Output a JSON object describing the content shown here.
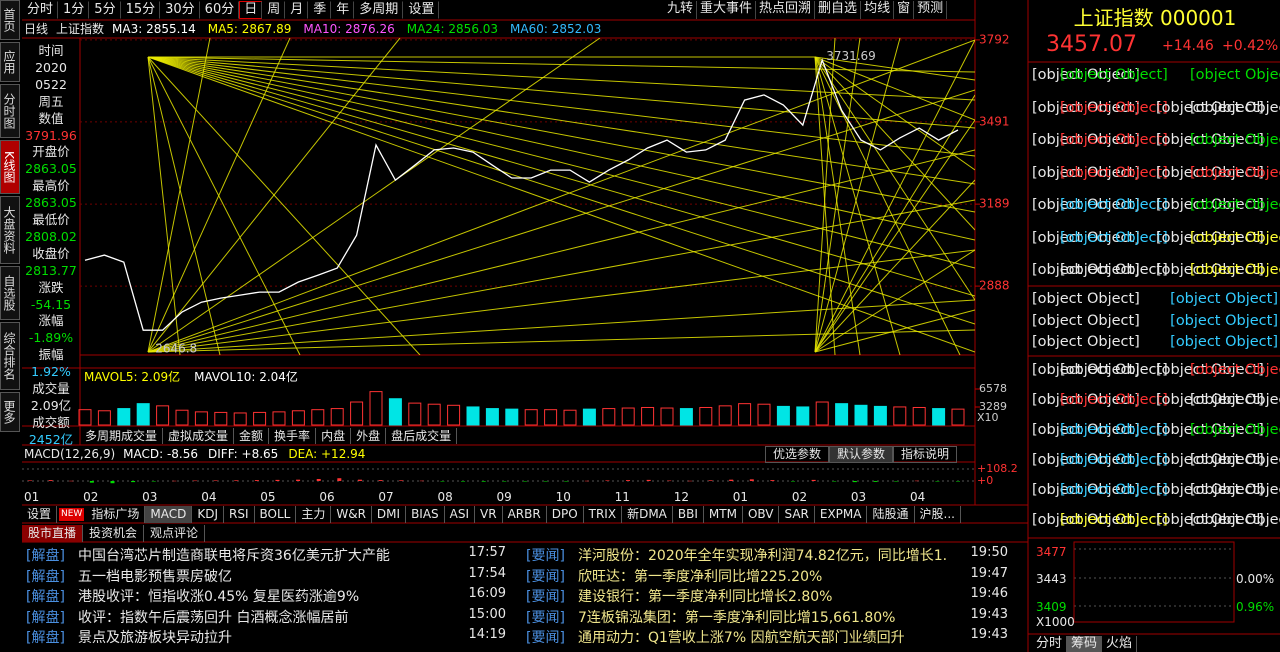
{
  "sidebar_tabs": [
    "首页",
    "应用",
    "分时图",
    "K线图",
    "大盘资料",
    "自选股",
    "综合排名",
    "更多"
  ],
  "sidebar_active": 3,
  "toolbar": {
    "periods": [
      "分时",
      "1分",
      "5分",
      "15分",
      "30分",
      "60分",
      "日",
      "周",
      "月",
      "季",
      "年",
      "多周期",
      "设置"
    ],
    "active": 6,
    "tools": [
      "九转",
      "重大事件",
      "热点回溯",
      "删自选",
      "均线",
      "窗",
      "预测"
    ]
  },
  "legend": {
    "period": "日线",
    "name": "上证指数",
    "ma": [
      {
        "label": "MA3: 2855.14",
        "color": "#ffffff"
      },
      {
        "label": "MA5: 2867.89",
        "color": "#ffff00"
      },
      {
        "label": "MA10: 2876.26",
        "color": "#ff55ff"
      },
      {
        "label": "MA24: 2856.03",
        "color": "#00e000"
      },
      {
        "label": "MA60: 2852.03",
        "color": "#33bbff"
      }
    ]
  },
  "info_panel": [
    {
      "text": "时间",
      "c": "w"
    },
    {
      "text": "2020",
      "c": "w"
    },
    {
      "text": "0522",
      "c": "w"
    },
    {
      "text": "周五",
      "c": "w"
    },
    {
      "text": "数值",
      "c": "w"
    },
    {
      "text": "3791.96",
      "c": "r"
    },
    {
      "text": "开盘价",
      "c": "w"
    },
    {
      "text": "2863.05",
      "c": "g"
    },
    {
      "text": "最高价",
      "c": "w"
    },
    {
      "text": "2863.05",
      "c": "g"
    },
    {
      "text": "最低价",
      "c": "w"
    },
    {
      "text": "2808.02",
      "c": "g"
    },
    {
      "text": "收盘价",
      "c": "w"
    },
    {
      "text": "2813.77",
      "c": "g"
    },
    {
      "text": "涨跌",
      "c": "w"
    },
    {
      "text": "-54.15",
      "c": "g"
    },
    {
      "text": "涨幅",
      "c": "w"
    },
    {
      "text": "-1.89%",
      "c": "g"
    },
    {
      "text": "振幅",
      "c": "w"
    },
    {
      "text": "1.92%",
      "c": "c"
    },
    {
      "text": "成交量",
      "c": "w"
    },
    {
      "text": "2.09亿",
      "c": "w"
    },
    {
      "text": "成交额",
      "c": "w"
    },
    {
      "text": "2452亿",
      "c": "c"
    }
  ],
  "kline": {
    "ylim": [
      2635,
      3799
    ],
    "yticks": [
      3792,
      3491,
      3189,
      2888
    ],
    "color": "#ffffff",
    "high": 3731.69,
    "low": 2646.8,
    "close": [
      2983,
      3002,
      2976,
      2726,
      2726,
      2793,
      2829,
      2844,
      2855,
      2866,
      2866,
      2903,
      2928,
      2954,
      3075,
      3406,
      3277,
      3332,
      3388,
      3395,
      3380,
      3332,
      3285,
      3285,
      3314,
      3314,
      3270,
      3314,
      3351,
      3395,
      3424,
      3380,
      3388,
      3424,
      3571,
      3590,
      3553,
      3479,
      3718,
      3534,
      3424,
      3388,
      3432,
      3468,
      3424,
      3461
    ]
  },
  "volume": {
    "legend": [
      {
        "label": "MAVOL5: 2.09亿",
        "color": "#ffff00"
      },
      {
        "label": "MAVOL10: 2.04亿",
        "color": "#ffffff"
      }
    ],
    "ylim": [
      0,
      10050
    ],
    "yticks": [
      6578,
      3289
    ],
    "unit": "X10",
    "up_color": "#ff3333",
    "down_color": "#00e5e5",
    "values": [
      2800,
      2600,
      3000,
      3900,
      3500,
      2700,
      2400,
      2300,
      2200,
      2300,
      2400,
      2600,
      2800,
      3000,
      4200,
      6100,
      4800,
      4000,
      3800,
      3600,
      3300,
      3000,
      2900,
      2800,
      2800,
      2700,
      2900,
      3000,
      3100,
      3200,
      3100,
      3000,
      3200,
      3500,
      3900,
      3800,
      3400,
      3300,
      4200,
      3900,
      3600,
      3400,
      3300,
      3200,
      3000,
      2900
    ]
  },
  "volume_tabs": [
    "多周期成交量",
    "虚拟成交量",
    "金额",
    "换手率",
    "内盘",
    "外盘",
    "盘后成交量"
  ],
  "macd": {
    "title": "MACD(12,26,9)",
    "values": [
      {
        "label": "MACD: -8.56",
        "color": "#ffffff"
      },
      {
        "label": "DIFF: +8.65",
        "color": "#ffffff"
      },
      {
        "label": "DEA: +12.94",
        "color": "#ffff00"
      }
    ],
    "buttons": [
      "优选参数",
      "默认参数",
      "指标说明"
    ],
    "ylim": [
      -81,
      171
    ],
    "yticks": [
      {
        "value": 108.2,
        "label": "+108.2"
      },
      {
        "value": 0,
        "label": "+0"
      }
    ],
    "hist": [
      5,
      8,
      2,
      -15,
      -20,
      -10,
      -3,
      2,
      4,
      5,
      6,
      8,
      10,
      12,
      18,
      25,
      12,
      8,
      6,
      3,
      -2,
      -5,
      -6,
      -4,
      -2,
      -3,
      -4,
      2,
      5,
      8,
      10,
      4,
      2,
      6,
      12,
      15,
      8,
      -3,
      10,
      -4,
      -10,
      -8,
      -2,
      3,
      -3,
      -1
    ]
  },
  "months": [
    "01",
    "02",
    "03",
    "04",
    "05",
    "06",
    "07",
    "08",
    "09",
    "10",
    "11",
    "12",
    "01",
    "02",
    "03",
    "04"
  ],
  "indicator_tabs": {
    "badge": "NEW",
    "items": [
      "设置",
      "指标广场",
      "MACD",
      "KDJ",
      "RSI",
      "BOLL",
      "主力",
      "W&R",
      "DMI",
      "BIAS",
      "ASI",
      "VR",
      "ARBR",
      "DPO",
      "TRIX",
      "新DMA",
      "BBI",
      "MTM",
      "OBV",
      "SAR",
      "EXPMA",
      "陆股通",
      "沪股..."
    ],
    "active": 2
  },
  "news": {
    "tabs": [
      "股市直播",
      "投资机会",
      "观点评论"
    ],
    "active": 0,
    "left": [
      {
        "tag": "[解盘]",
        "text": "中国台湾芯片制造商联电将斥资36亿美元扩大产能",
        "time": "17:57"
      },
      {
        "tag": "[解盘]",
        "text": "五一档电影预售票房破亿",
        "time": "17:54"
      },
      {
        "tag": "[解盘]",
        "text": "港股收评：恒指收涨0.45% 复星医药涨逾9%",
        "time": "16:09"
      },
      {
        "tag": "[解盘]",
        "text": "收评：指数午后震荡回升 白酒概念涨幅居前",
        "time": "15:00"
      },
      {
        "tag": "[解盘]",
        "text": "景点及旅游板块异动拉升",
        "time": "14:19"
      }
    ],
    "right": [
      {
        "tag": "[要闻]",
        "text": "洋河股份：2020年全年实现净利润74.82亿元，同比增长1...",
        "time": "19:50"
      },
      {
        "tag": "[要闻]",
        "text": "欣旺达：第一季度净利同比增225.20%",
        "time": "19:47"
      },
      {
        "tag": "[要闻]",
        "text": "建设银行：第一季度净利同比增长2.80%",
        "time": "19:46"
      },
      {
        "tag": "[要闻]",
        "text": "7连板锦泓集团：第一季度净利同比增15,661.80%",
        "time": "19:43"
      },
      {
        "tag": "[要闻]",
        "text": "通用动力：Q1营收上涨7% 因航空航天部门业绩回升",
        "time": "19:43"
      }
    ]
  },
  "quote": {
    "title": "上证指数 000001",
    "price": "3457.07",
    "change": "+14.46",
    "pct": "+0.42%",
    "rows": [
      [
        {
          "text": "委比",
          "c": "w"
        },
        {
          "text": "-7.82%",
          "c": "g"
        },
        {
          "text": "-2501931",
          "c": "g"
        }
      ],
      [
        {
          "text": "最新",
          "c": "w"
        },
        {
          "text": "3457.07",
          "c": "r"
        },
        {
          "text": "昨收",
          "c": "w"
        },
        {
          "text": "3442.61",
          "c": "w"
        }
      ],
      [
        {
          "text": "涨跌",
          "c": "w"
        },
        {
          "text": "+14.46",
          "c": "r"
        },
        {
          "text": "开盘",
          "c": "w"
        },
        {
          "text": "3432.16",
          "c": "g"
        }
      ],
      [
        {
          "text": "涨幅",
          "c": "w"
        },
        {
          "text": "+0.42%",
          "c": "r"
        },
        {
          "text": "最高",
          "c": "w"
        },
        {
          "text": "3457.07",
          "c": "r"
        }
      ],
      [
        {
          "text": "振幅",
          "c": "w"
        },
        {
          "text": "0.98%",
          "c": "c"
        },
        {
          "text": "最低",
          "c": "w"
        },
        {
          "text": "3423.33",
          "c": "g"
        }
      ],
      [
        {
          "text": "现手",
          "c": "w"
        },
        {
          "text": "127260",
          "c": "c"
        },
        {
          "text": "量比",
          "c": "w"
        },
        {
          "text": "0.96",
          "c": "y"
        }
      ],
      [
        {
          "text": "总手",
          "c": "w"
        },
        {
          "text": "24738万",
          "c": "w"
        },
        {
          "text": "金额",
          "c": "w"
        },
        {
          "text": "3497亿",
          "c": "y"
        }
      ]
    ],
    "market": [
      [
        {
          "text": "总市值",
          "c": "w"
        },
        {
          "text": "458896亿",
          "c": "c"
        }
      ],
      [
        {
          "text": "流通市值",
          "c": "w"
        },
        {
          "text": "387332亿",
          "c": "c"
        }
      ],
      [
        {
          "text": "两市成交额[沪市+深市]",
          "c": "w"
        },
        {
          "text": "7882亿",
          "c": "c"
        }
      ]
    ],
    "depth": [
      [
        {
          "text": "委卖量",
          "c": "w"
        },
        {
          "text": "1725万",
          "c": "w"
        },
        {
          "text": "上涨家数",
          "c": "w"
        },
        {
          "text": "1063",
          "c": "r"
        }
      ],
      [
        {
          "text": "委买量",
          "c": "w"
        },
        {
          "text": "1475万",
          "c": "r"
        },
        {
          "text": "平盘家数",
          "c": "w"
        },
        {
          "text": "86",
          "c": "w"
        }
      ],
      [
        {
          "text": "卖金额",
          "c": "w"
        },
        {
          "text": "79.88亿",
          "c": "c"
        },
        {
          "text": "下跌家数",
          "c": "w"
        },
        {
          "text": "764",
          "c": "g"
        }
      ],
      [
        {
          "text": "买金额",
          "c": "w"
        },
        {
          "text": "85.23亿",
          "c": "c"
        },
        {
          "text": "市盈",
          "c": "w"
        },
        {
          "text": "17.51",
          "c": "w"
        }
      ],
      [
        {
          "text": "换手",
          "c": "w"
        },
        {
          "text": "0.67%",
          "c": "c"
        },
        {
          "text": "市盈(动)",
          "c": "w"
        },
        {
          "text": "16.59",
          "c": "w"
        }
      ],
      [
        {
          "text": "均价",
          "c": "w"
        },
        {
          "text": "27.81",
          "c": "y"
        },
        {
          "text": "市净率",
          "c": "w"
        },
        {
          "text": "1.58",
          "c": "w"
        }
      ]
    ]
  },
  "mini": {
    "left": [
      {
        "text": "3477",
        "c": "r"
      },
      {
        "text": "3443",
        "c": "w"
      },
      {
        "text": "3409",
        "c": "g"
      },
      {
        "text": "X1000",
        "c": "w"
      }
    ],
    "right": [
      {
        "text": "0.00%",
        "c": "w"
      },
      {
        "text": "0.96%",
        "c": "g"
      }
    ],
    "tabs": [
      "分时",
      "筹码",
      "火焰"
    ],
    "active": 1
  },
  "palette": {
    "r": "#ff3333",
    "g": "#00dd00",
    "w": "#e8e8e8",
    "y": "#ffff33",
    "c": "#33ccff"
  }
}
